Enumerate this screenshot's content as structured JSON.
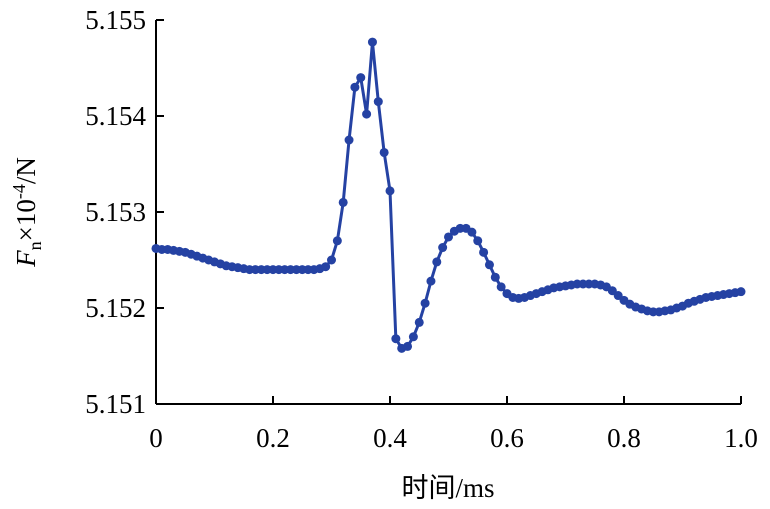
{
  "chart_data": {
    "type": "line",
    "title": "",
    "xlabel": "时间/ms",
    "ylabel": {
      "symbol": "F",
      "subscript": "n",
      "multiplier": "×10",
      "exponent": "-4",
      "unit": "/N"
    },
    "xlim": [
      0,
      1.0
    ],
    "ylim": [
      5.151,
      5.155
    ],
    "xticks": [
      "0",
      "0.2",
      "0.4",
      "0.6",
      "0.8",
      "1.0"
    ],
    "yticks": [
      "5.151",
      "5.152",
      "5.153",
      "5.154",
      "5.155"
    ],
    "grid": false,
    "legend": "none",
    "colors": {
      "series": "#2542a3",
      "axes": "#000000"
    },
    "series": [
      {
        "x": [
          0,
          0.01,
          0.02,
          0.03,
          0.04,
          0.05,
          0.06,
          0.07,
          0.08,
          0.09,
          0.1,
          0.11,
          0.12,
          0.13,
          0.14,
          0.15,
          0.16,
          0.17,
          0.18,
          0.19,
          0.2,
          0.21,
          0.22,
          0.23,
          0.24,
          0.25,
          0.26,
          0.27,
          0.28,
          0.29,
          0.3,
          0.31,
          0.32,
          0.33,
          0.34,
          0.35,
          0.36,
          0.37,
          0.38,
          0.39,
          0.4,
          0.41,
          0.42,
          0.43,
          0.44,
          0.45,
          0.46,
          0.47,
          0.48,
          0.49,
          0.5,
          0.51,
          0.52,
          0.53,
          0.54,
          0.55,
          0.56,
          0.57,
          0.58,
          0.59,
          0.6,
          0.61,
          0.62,
          0.63,
          0.64,
          0.65,
          0.66,
          0.67,
          0.68,
          0.69,
          0.7,
          0.71,
          0.72,
          0.73,
          0.74,
          0.75,
          0.76,
          0.77,
          0.78,
          0.79,
          0.8,
          0.81,
          0.82,
          0.83,
          0.84,
          0.85,
          0.86,
          0.87,
          0.88,
          0.89,
          0.9,
          0.91,
          0.92,
          0.93,
          0.94,
          0.95,
          0.96,
          0.97,
          0.98,
          0.99,
          1.0
        ],
        "values": [
          5.15262,
          5.15261,
          5.15261,
          5.1526,
          5.15259,
          5.15258,
          5.15256,
          5.15254,
          5.15252,
          5.1525,
          5.15248,
          5.15246,
          5.15244,
          5.15243,
          5.15242,
          5.15241,
          5.1524,
          5.1524,
          5.1524,
          5.1524,
          5.1524,
          5.1524,
          5.1524,
          5.1524,
          5.1524,
          5.1524,
          5.1524,
          5.1524,
          5.15241,
          5.15243,
          5.1525,
          5.1527,
          5.1531,
          5.15375,
          5.1543,
          5.1544,
          5.15402,
          5.15477,
          5.15415,
          5.15362,
          5.15322,
          5.15168,
          5.15158,
          5.1516,
          5.1517,
          5.15185,
          5.15205,
          5.15228,
          5.15248,
          5.15263,
          5.15274,
          5.1528,
          5.15283,
          5.15283,
          5.15279,
          5.1527,
          5.15258,
          5.15245,
          5.15232,
          5.15222,
          5.15215,
          5.15211,
          5.1521,
          5.15211,
          5.15213,
          5.15215,
          5.15217,
          5.15219,
          5.15221,
          5.15222,
          5.15223,
          5.15224,
          5.15225,
          5.15225,
          5.15225,
          5.15225,
          5.15224,
          5.15222,
          5.15218,
          5.15213,
          5.15208,
          5.15204,
          5.15201,
          5.15199,
          5.15197,
          5.15196,
          5.15196,
          5.15197,
          5.15198,
          5.152,
          5.15202,
          5.15205,
          5.15207,
          5.15209,
          5.15211,
          5.15212,
          5.15213,
          5.15214,
          5.15215,
          5.15216,
          5.15217
        ]
      }
    ]
  }
}
